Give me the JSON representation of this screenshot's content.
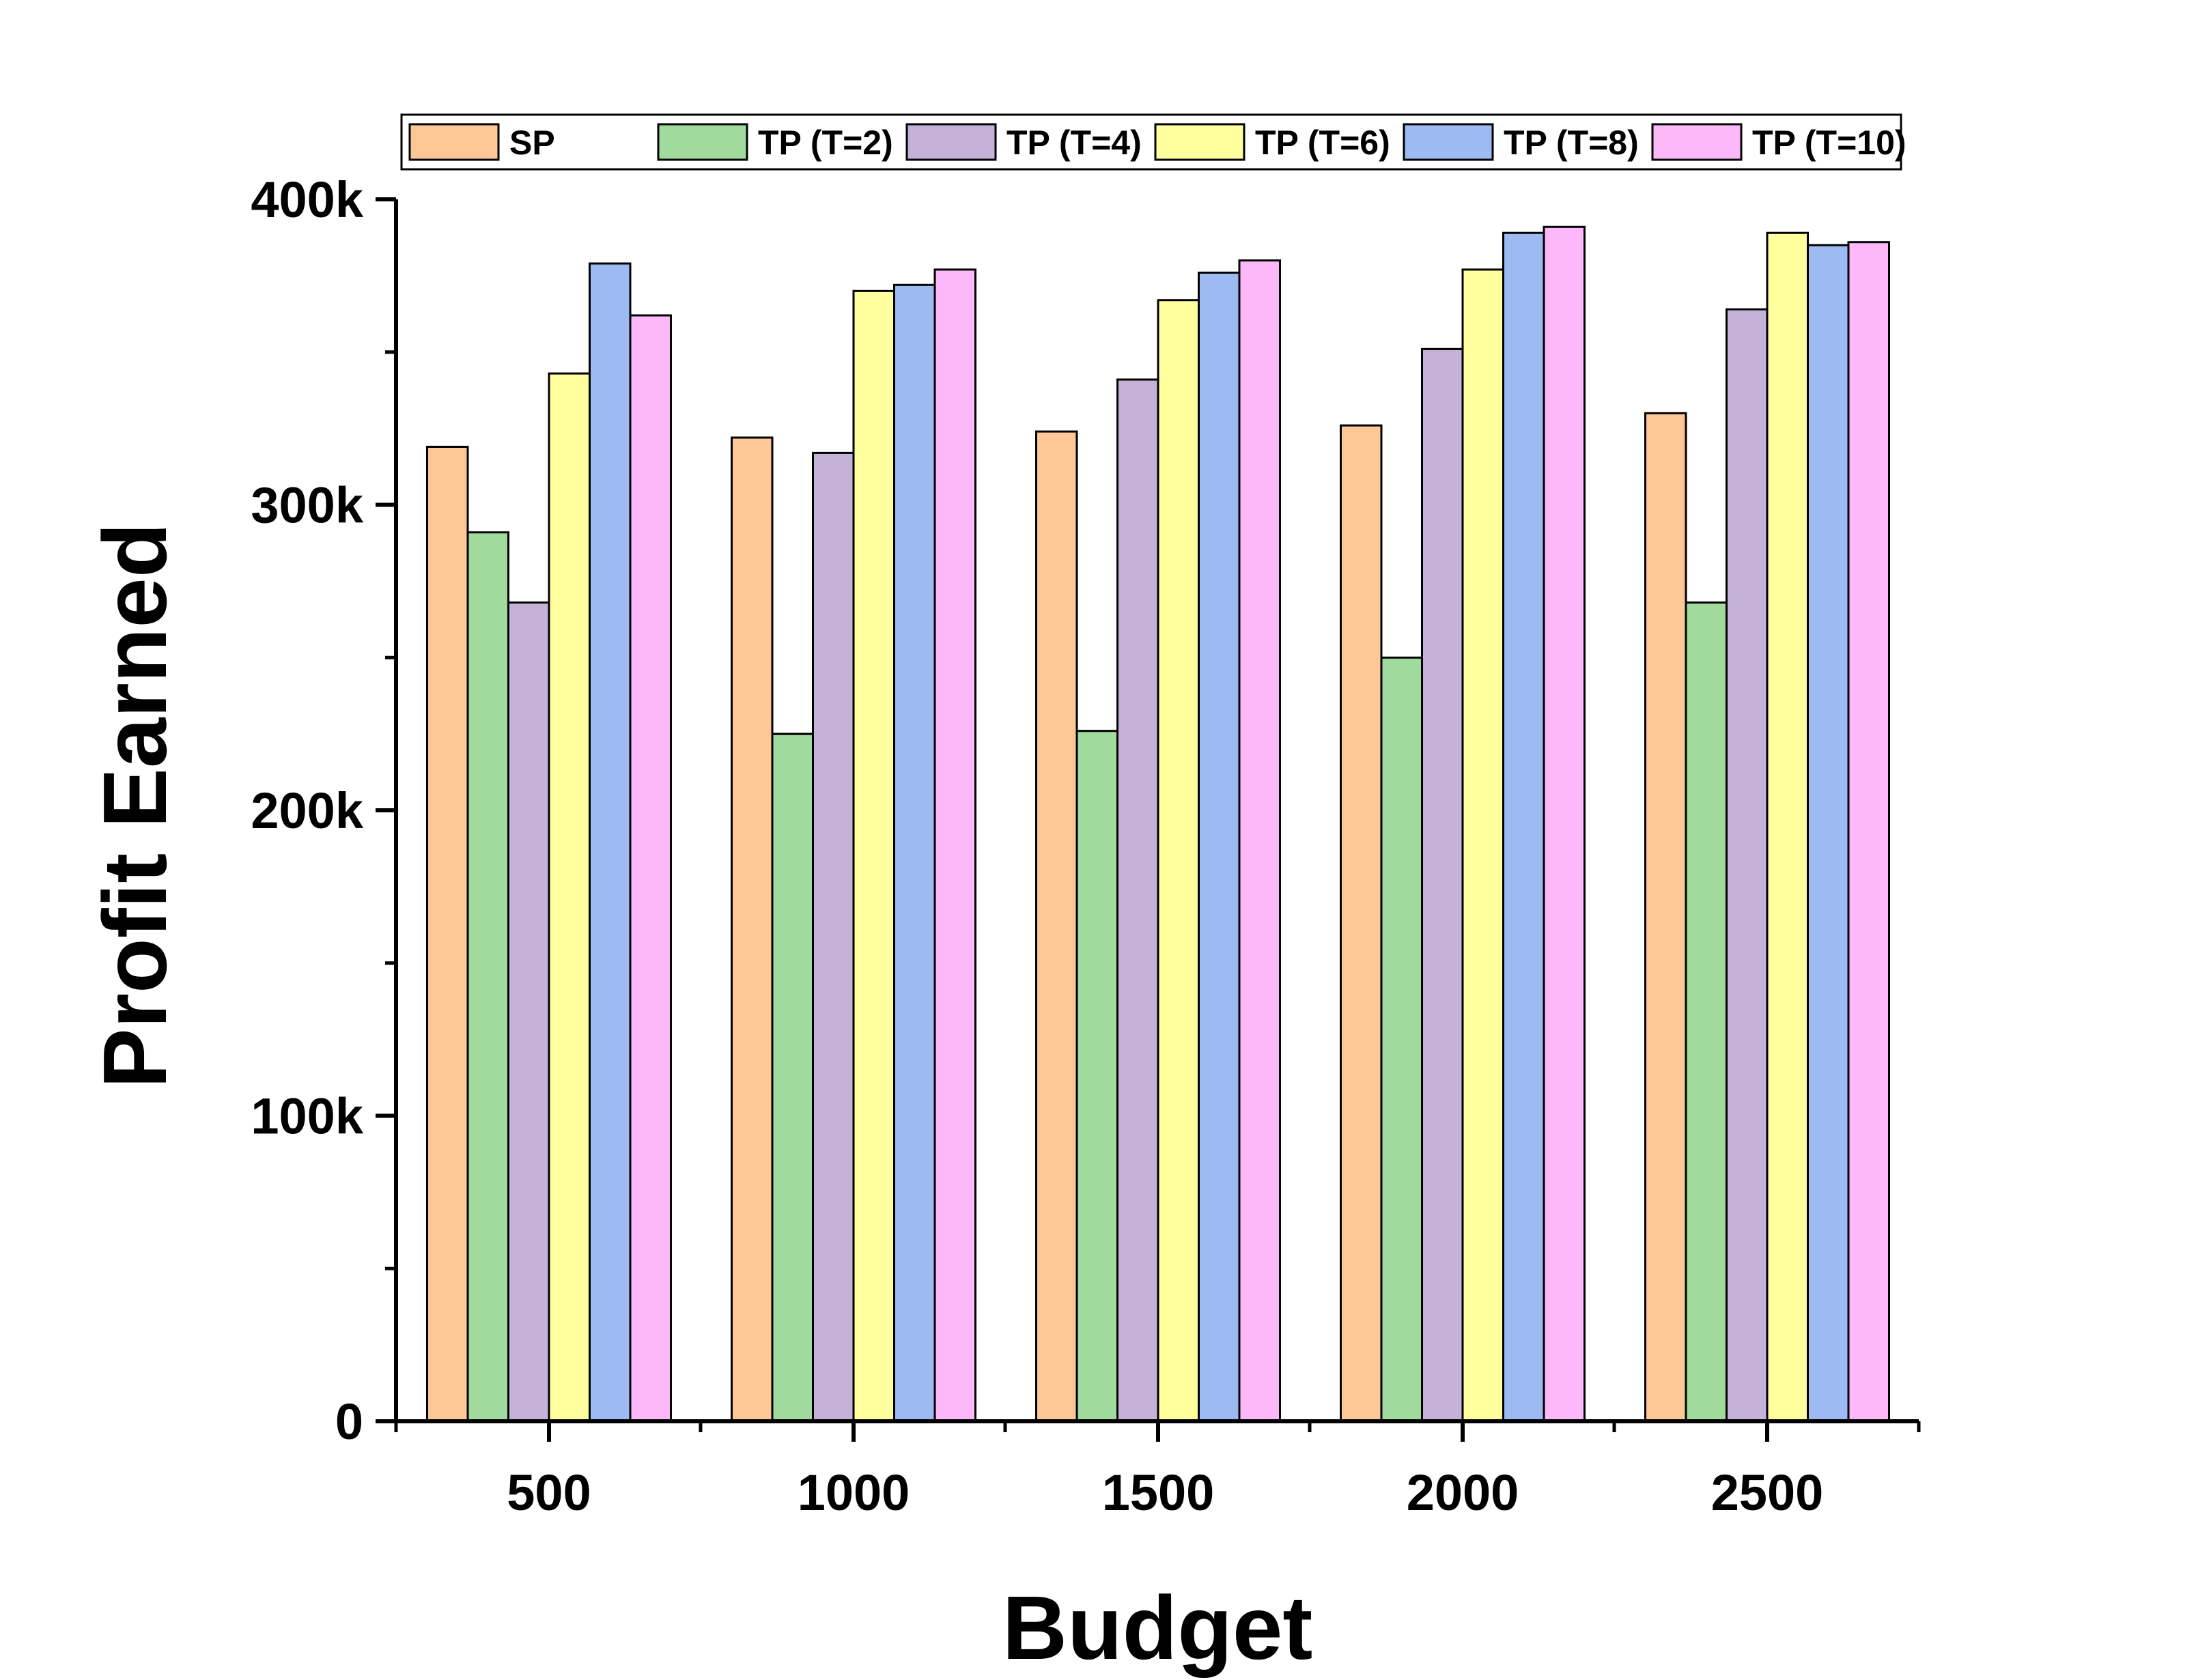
{
  "chart_data": {
    "type": "bar",
    "title": "",
    "xlabel": "Budget",
    "ylabel": "Profit Earned",
    "categories": [
      "500",
      "1000",
      "1500",
      "2000",
      "2500"
    ],
    "ylim": [
      0,
      400000
    ],
    "yticks": [
      {
        "value": 0,
        "label": "0"
      },
      {
        "value": 100000,
        "label": "100k"
      },
      {
        "value": 200000,
        "label": "200k"
      },
      {
        "value": 300000,
        "label": "300k"
      },
      {
        "value": 400000,
        "label": "400k"
      }
    ],
    "legend_position": "top",
    "grid": false,
    "series": [
      {
        "name": "SP",
        "color": "#FDC896",
        "values": [
          319000,
          322000,
          324000,
          326000,
          330000
        ]
      },
      {
        "name": "TP (T=2)",
        "color": "#A0DA9C",
        "values": [
          291000,
          225000,
          226000,
          250000,
          268000
        ]
      },
      {
        "name": "TP (T=4)",
        "color": "#C4B2D8",
        "values": [
          268000,
          317000,
          341000,
          351000,
          364000
        ]
      },
      {
        "name": "TP (T=6)",
        "color": "#FFFF9E",
        "values": [
          343000,
          370000,
          367000,
          377000,
          389000
        ]
      },
      {
        "name": "TP (T=8)",
        "color": "#9DBAF2",
        "values": [
          379000,
          372000,
          376000,
          389000,
          385000
        ]
      },
      {
        "name": "TP (T=10)",
        "color": "#FCB8F8",
        "values": [
          362000,
          377000,
          380000,
          391000,
          386000
        ]
      }
    ]
  }
}
